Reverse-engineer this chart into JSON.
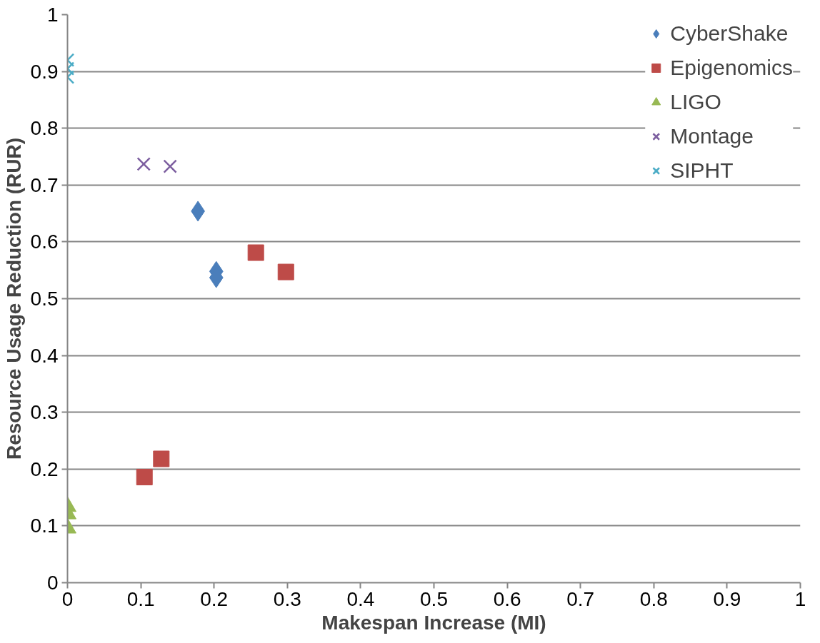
{
  "chart_data": {
    "type": "scatter",
    "xlabel": "Makespan Increase (MI)",
    "ylabel": "Resource Usage Reduction (RUR)",
    "xlim": [
      0,
      1
    ],
    "ylim": [
      0,
      1
    ],
    "xticks": [
      0,
      0.1,
      0.2,
      0.3,
      0.4,
      0.5,
      0.6,
      0.7,
      0.8,
      0.9,
      1
    ],
    "yticks": [
      0,
      0.1,
      0.2,
      0.3,
      0.4,
      0.5,
      0.6,
      0.7,
      0.8,
      0.9,
      1
    ],
    "grid": "y",
    "legend": "top right",
    "series": [
      {
        "name": "CyberShake",
        "color": "#4a7ebb",
        "marker": "diamond",
        "x": [
          0.178,
          0.203,
          0.203
        ],
        "values": [
          0.654,
          0.548,
          0.537
        ]
      },
      {
        "name": "Epigenomics",
        "color": "#be4b48",
        "marker": "square",
        "x": [
          0.257,
          0.298,
          0.105,
          0.128
        ],
        "values": [
          0.581,
          0.547,
          0.186,
          0.218
        ]
      },
      {
        "name": "LIGO",
        "color": "#98b954",
        "marker": "triangle",
        "x": [
          0,
          0,
          0
        ],
        "values": [
          0.134,
          0.121,
          0.096
        ]
      },
      {
        "name": "Montage",
        "color": "#7d5fa0",
        "marker": "cross",
        "x": [
          0.104,
          0.14
        ],
        "values": [
          0.737,
          0.733
        ]
      },
      {
        "name": "SIPHT",
        "color": "#4bacc6",
        "marker": "cross",
        "x": [
          0,
          0,
          0
        ],
        "values": [
          0.92,
          0.905,
          0.89
        ]
      }
    ]
  }
}
